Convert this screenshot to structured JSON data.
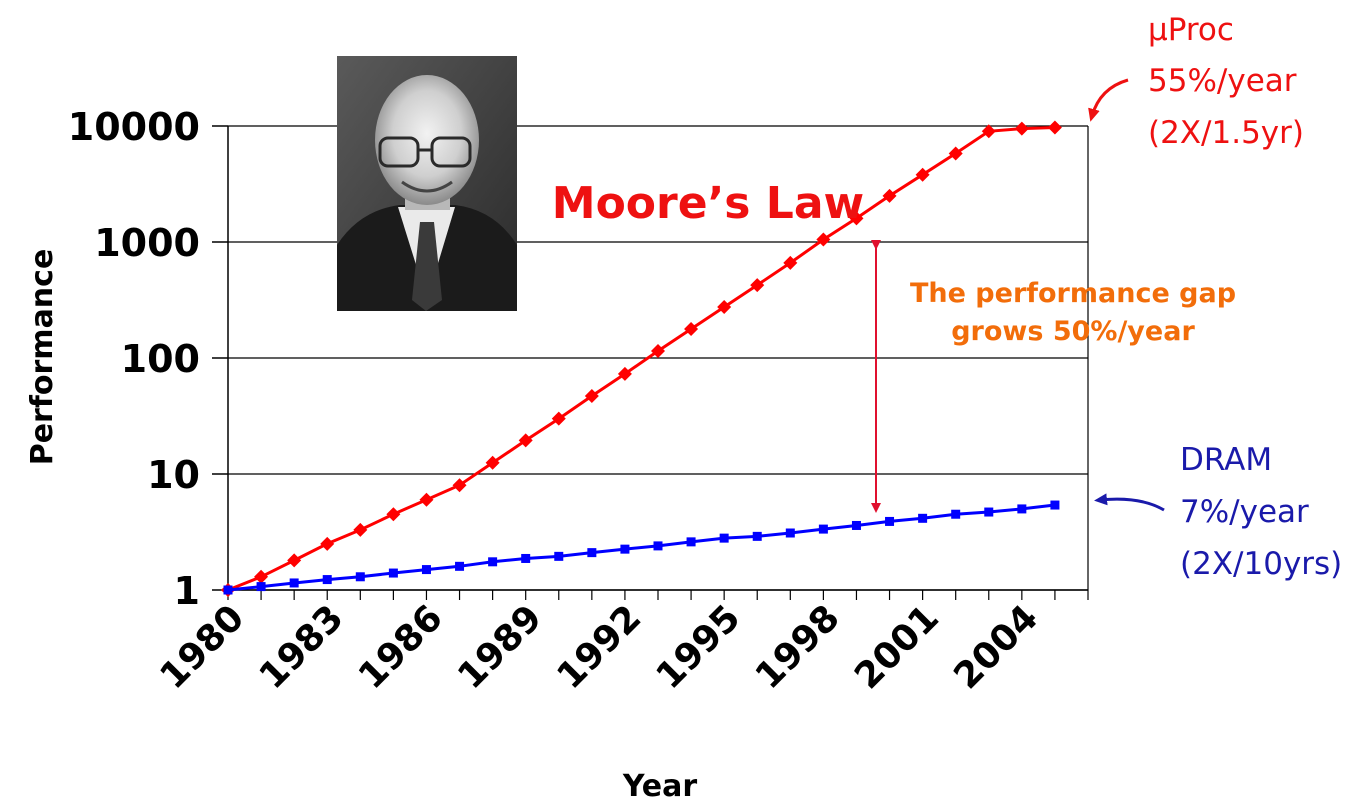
{
  "chart_data": {
    "type": "line",
    "title": "",
    "xlabel": "Year",
    "ylabel": "Performance",
    "x_tick_labels": [
      "1980",
      "1983",
      "1986",
      "1989",
      "1992",
      "1995",
      "1998",
      "2001",
      "2004"
    ],
    "y_tick_labels": [
      "1",
      "10",
      "100",
      "1000",
      "10000"
    ],
    "yscale": "log",
    "ylim": [
      1,
      10000
    ],
    "xlim": [
      1980,
      2006
    ],
    "grid": "horizontal",
    "x": [
      1980,
      1981,
      1982,
      1983,
      1984,
      1985,
      1986,
      1987,
      1988,
      1989,
      1990,
      1991,
      1992,
      1993,
      1994,
      1995,
      1996,
      1997,
      1998,
      1999,
      2000,
      2001,
      2002,
      2003,
      2004,
      2005
    ],
    "series": [
      {
        "name": "µProc",
        "color": "#ff0000",
        "marker": "diamond",
        "values": [
          1,
          1.3,
          1.8,
          2.5,
          3.3,
          4.5,
          6,
          8,
          12.5,
          19.5,
          30,
          47,
          73,
          115,
          178,
          275,
          425,
          660,
          1050,
          1600,
          2500,
          3800,
          5800,
          9000,
          9500,
          9700
        ]
      },
      {
        "name": "DRAM",
        "color": "#0000ff",
        "marker": "square",
        "values": [
          1,
          1.07,
          1.15,
          1.23,
          1.3,
          1.4,
          1.5,
          1.6,
          1.75,
          1.87,
          1.95,
          2.1,
          2.25,
          2.4,
          2.6,
          2.8,
          2.9,
          3.1,
          3.35,
          3.6,
          3.9,
          4.15,
          4.5,
          4.7,
          5.0,
          5.4
        ]
      }
    ],
    "annotations": {
      "moores_law": "Moore’s Law",
      "gap_line1": "The performance gap",
      "gap_line2": "grows 50%/year",
      "uproc_line1": "µProc",
      "uproc_line2": "55%/year",
      "uproc_line3": "(2X/1.5yr)",
      "dram_line1": "DRAM",
      "dram_line2": "7%/year",
      "dram_line3": "(2X/10yrs)"
    },
    "colors": {
      "uproc": "#ff0000",
      "dram": "#0000ff",
      "gap_text": "#f26d0a",
      "gap_arrow": "#e0102e",
      "uproc_text": "#ee1111",
      "dram_text": "#1a1aaa"
    }
  },
  "photo": {
    "icon": "portrait-photo"
  }
}
